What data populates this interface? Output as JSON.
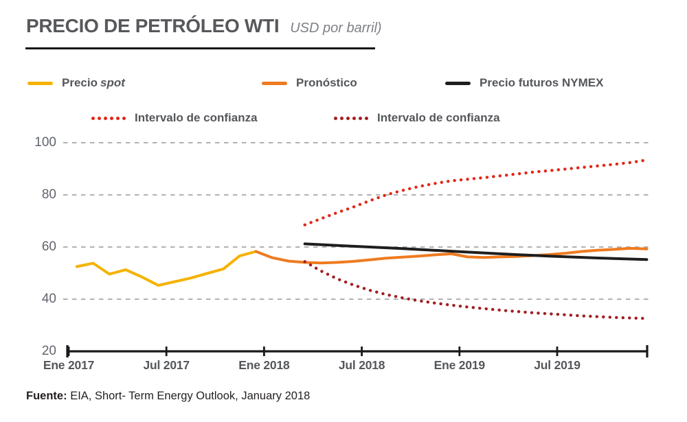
{
  "title": {
    "main": "PRECIO DE PETRÓLEO WTI",
    "unit": "USD por barril)"
  },
  "source": {
    "prefix": "Fuente:",
    "text": "EIA, Short- Term Energy Outlook, January 2018"
  },
  "chart_data": {
    "type": "line",
    "title": "PRECIO DE PETRÓLEO WTI",
    "ylabel": "USD por barril",
    "ylim": [
      20,
      100
    ],
    "yticks": [
      100,
      80,
      60,
      40,
      20
    ],
    "grid": "horizontal-dashed",
    "grid_color": "#A6A6A6",
    "axis_color": "#1A1A1A",
    "legend_position": "top",
    "xticks": [
      {
        "pos": 2017.0,
        "label": "Ene 2017"
      },
      {
        "pos": 2017.5,
        "label": "Jul 2017"
      },
      {
        "pos": 2018.0,
        "label": "Ene 2018"
      },
      {
        "pos": 2018.5,
        "label": "Jul 2018"
      },
      {
        "pos": 2019.0,
        "label": "Ene 2019"
      },
      {
        "pos": 2019.5,
        "label": "Jul 2019"
      }
    ],
    "series": [
      {
        "id": "precio-spot",
        "name": "Precio spot",
        "legend_label": "Precio",
        "legend_label_italic": "spot",
        "color": "#F5B201",
        "style": "solid",
        "points": [
          [
            "2017-01",
            52.5
          ],
          [
            "2017-02",
            53.8
          ],
          [
            "2017-03",
            49.6
          ],
          [
            "2017-04",
            51.3
          ],
          [
            "2017-05",
            48.5
          ],
          [
            "2017-06",
            45.3
          ],
          [
            "2017-07",
            46.7
          ],
          [
            "2017-08",
            48.1
          ],
          [
            "2017-09",
            49.9
          ],
          [
            "2017-10",
            51.6
          ],
          [
            "2017-11",
            56.6
          ],
          [
            "2017-12",
            58.3
          ]
        ]
      },
      {
        "id": "pronostico",
        "name": "Pronóstico",
        "legend_label": "Pronóstico",
        "color": "#EF7B20",
        "style": "solid",
        "points": [
          [
            "2017-12",
            58.3
          ],
          [
            "2018-01",
            55.9
          ],
          [
            "2018-02",
            54.6
          ],
          [
            "2018-03",
            54.1
          ],
          [
            "2018-04",
            53.9
          ],
          [
            "2018-05",
            54.1
          ],
          [
            "2018-06",
            54.5
          ],
          [
            "2018-07",
            55.1
          ],
          [
            "2018-08",
            55.7
          ],
          [
            "2018-09",
            56.1
          ],
          [
            "2018-10",
            56.5
          ],
          [
            "2018-11",
            57.0
          ],
          [
            "2018-12",
            57.4
          ],
          [
            "2019-01",
            56.2
          ],
          [
            "2019-02",
            56.0
          ],
          [
            "2019-03",
            56.2
          ],
          [
            "2019-04",
            56.4
          ],
          [
            "2019-05",
            56.7
          ],
          [
            "2019-06",
            57.1
          ],
          [
            "2019-07",
            57.6
          ],
          [
            "2019-08",
            58.3
          ],
          [
            "2019-09",
            58.8
          ],
          [
            "2019-10",
            59.1
          ],
          [
            "2019-11",
            59.5
          ],
          [
            "2019-12",
            59.3
          ]
        ]
      },
      {
        "id": "futuros-nymex",
        "name": "Precio futuros NYMEX",
        "legend_label": "Precio futuros NYMEX",
        "color": "#1E1E1E",
        "style": "solid",
        "points": [
          [
            "2018-03",
            61.2
          ],
          [
            "2018-06",
            60.3
          ],
          [
            "2018-09",
            59.4
          ],
          [
            "2018-12",
            58.4
          ],
          [
            "2019-03",
            57.4
          ],
          [
            "2019-06",
            56.5
          ],
          [
            "2019-09",
            55.8
          ],
          [
            "2019-12",
            55.2
          ]
        ]
      },
      {
        "id": "confianza-superior",
        "name": "Intervalo de confianza",
        "legend_label": "Intervalo de confianza",
        "color": "#E22718",
        "style": "dotted",
        "points": [
          [
            "2018-03",
            68.5
          ],
          [
            "2018-04",
            70.9
          ],
          [
            "2018-05",
            73.2
          ],
          [
            "2018-06",
            75.4
          ],
          [
            "2018-07",
            77.8
          ],
          [
            "2018-08",
            80.0
          ],
          [
            "2018-09",
            81.7
          ],
          [
            "2018-10",
            83.2
          ],
          [
            "2018-11",
            84.4
          ],
          [
            "2018-12",
            85.4
          ],
          [
            "2019-01",
            86.0
          ],
          [
            "2019-02",
            86.6
          ],
          [
            "2019-03",
            87.3
          ],
          [
            "2019-04",
            88.0
          ],
          [
            "2019-05",
            88.7
          ],
          [
            "2019-06",
            89.3
          ],
          [
            "2019-07",
            89.9
          ],
          [
            "2019-08",
            90.5
          ],
          [
            "2019-09",
            91.1
          ],
          [
            "2019-10",
            91.7
          ],
          [
            "2019-11",
            92.4
          ],
          [
            "2019-12",
            93.4
          ]
        ]
      },
      {
        "id": "confianza-inferior",
        "name": "Intervalo de confianza",
        "legend_label": "Intervalo de confianza",
        "color": "#A21E22",
        "style": "dotted",
        "points": [
          [
            "2018-03",
            54.4
          ],
          [
            "2018-04",
            50.8
          ],
          [
            "2018-05",
            47.8
          ],
          [
            "2018-06",
            45.4
          ],
          [
            "2018-07",
            43.4
          ],
          [
            "2018-08",
            41.8
          ],
          [
            "2018-09",
            40.5
          ],
          [
            "2018-10",
            39.4
          ],
          [
            "2018-11",
            38.5
          ],
          [
            "2018-12",
            37.7
          ],
          [
            "2019-01",
            37.0
          ],
          [
            "2019-02",
            36.4
          ],
          [
            "2019-03",
            35.8
          ],
          [
            "2019-04",
            35.3
          ],
          [
            "2019-05",
            34.8
          ],
          [
            "2019-06",
            34.4
          ],
          [
            "2019-07",
            34.0
          ],
          [
            "2019-08",
            33.6
          ],
          [
            "2019-09",
            33.3
          ],
          [
            "2019-10",
            33.0
          ],
          [
            "2019-11",
            32.8
          ],
          [
            "2019-12",
            32.6
          ]
        ]
      }
    ]
  }
}
